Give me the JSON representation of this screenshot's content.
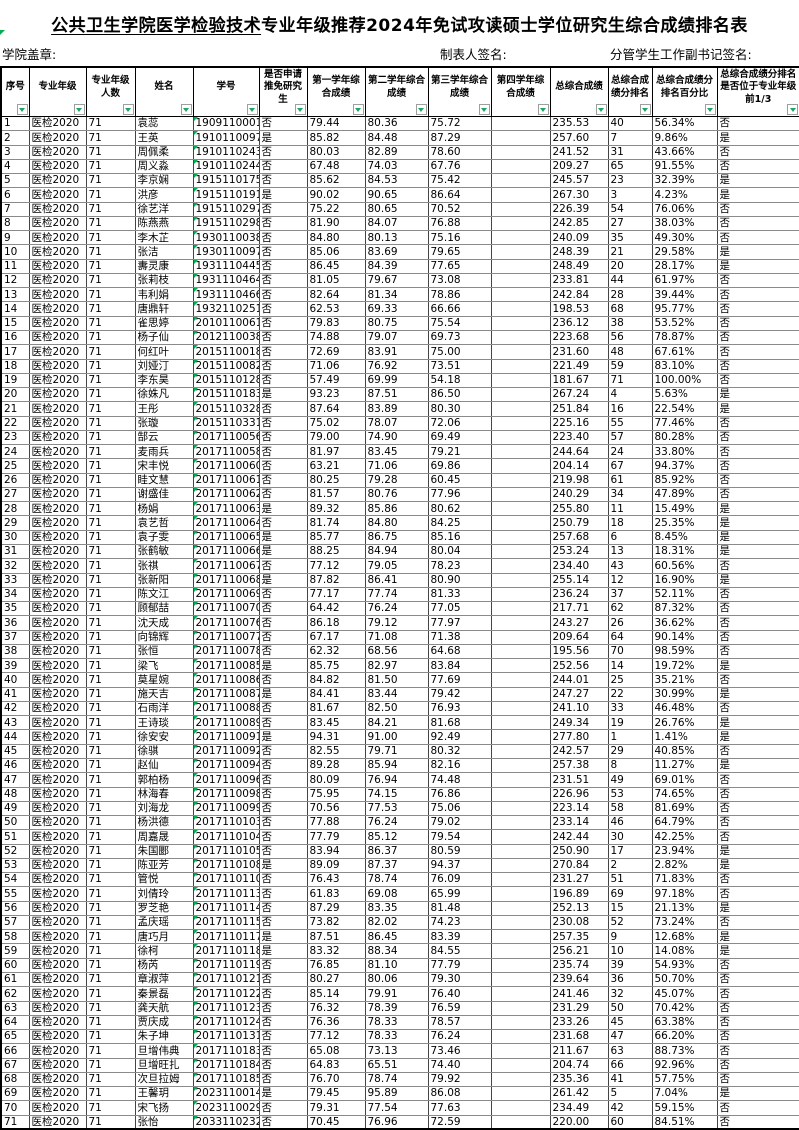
{
  "title": {
    "underlined_part1": "公共卫生学院",
    "underlined_part2": "医学检验技术",
    "rest": "专业年级推荐2024年免试攻读硕士学位研究生综合成绩排名表"
  },
  "signatures": {
    "left": "学院盖章:",
    "center": "制表人签名:",
    "right": "分管学生工作副书记签名:"
  },
  "colors": {
    "filter_arrow_green": "#21a366",
    "error_indicator_green": "#00b050",
    "grid_line": "#8a8a8a",
    "border": "#000000"
  },
  "columns": [
    {
      "key": "index",
      "label": "序号"
    },
    {
      "key": "major",
      "label": "专业年级"
    },
    {
      "key": "cohort_size",
      "label": "专业年级人数"
    },
    {
      "key": "name",
      "label": "姓名"
    },
    {
      "key": "student_id",
      "label": "学号"
    },
    {
      "key": "applied",
      "label": "是否申请推免研究生"
    },
    {
      "key": "year1",
      "label": "第一学年综合成绩"
    },
    {
      "key": "year2",
      "label": "第二学年综合成绩"
    },
    {
      "key": "year3",
      "label": "第三学年综合成绩"
    },
    {
      "key": "year4",
      "label": "第四学年综合成绩"
    },
    {
      "key": "total",
      "label": "总综合成绩"
    },
    {
      "key": "rank",
      "label": "总综合成绩分排名"
    },
    {
      "key": "rank_percent",
      "label": "总综合成绩分排名百分比"
    },
    {
      "key": "in_top_third",
      "label": "总综合成绩分排名是否位于专业年级前1/3"
    }
  ],
  "rows": [
    [
      "1",
      "医检2020",
      "71",
      "袁蕊",
      "1909110001",
      "否",
      "79.44",
      "80.36",
      "75.72",
      "",
      "235.53",
      "40",
      "56.34%",
      "否"
    ],
    [
      "2",
      "医检2020",
      "71",
      "王英",
      "1910110097",
      "是",
      "85.82",
      "84.48",
      "87.29",
      "",
      "257.60",
      "7",
      "9.86%",
      "是"
    ],
    [
      "3",
      "医检2020",
      "71",
      "周佩柔",
      "1910110243",
      "否",
      "80.03",
      "82.89",
      "78.60",
      "",
      "241.52",
      "31",
      "43.66%",
      "否"
    ],
    [
      "4",
      "医检2020",
      "71",
      "周义淼",
      "1910110244",
      "否",
      "67.48",
      "74.03",
      "67.76",
      "",
      "209.27",
      "65",
      "91.55%",
      "否"
    ],
    [
      "5",
      "医检2020",
      "71",
      "李京娴",
      "1915110175",
      "否",
      "85.62",
      "84.53",
      "75.42",
      "",
      "245.57",
      "23",
      "32.39%",
      "是"
    ],
    [
      "6",
      "医检2020",
      "71",
      "洪彦",
      "1915110191",
      "是",
      "90.02",
      "90.65",
      "86.64",
      "",
      "267.30",
      "3",
      "4.23%",
      "是"
    ],
    [
      "7",
      "医检2020",
      "71",
      "徐艺洋",
      "1915110297",
      "否",
      "75.22",
      "80.65",
      "70.52",
      "",
      "226.39",
      "54",
      "76.06%",
      "否"
    ],
    [
      "8",
      "医检2020",
      "71",
      "陈燕燕",
      "1915110298",
      "否",
      "81.90",
      "84.07",
      "76.88",
      "",
      "242.85",
      "27",
      "38.03%",
      "否"
    ],
    [
      "9",
      "医检2020",
      "71",
      "李木芷",
      "1930110038",
      "否",
      "84.80",
      "80.13",
      "75.16",
      "",
      "240.09",
      "35",
      "49.30%",
      "否"
    ],
    [
      "10",
      "医检2020",
      "71",
      "张洁",
      "1930110097",
      "否",
      "85.06",
      "83.69",
      "79.65",
      "",
      "248.39",
      "21",
      "29.58%",
      "是"
    ],
    [
      "11",
      "医检2020",
      "71",
      "夀灵康",
      "1931110445",
      "否",
      "86.45",
      "84.39",
      "77.65",
      "",
      "248.49",
      "20",
      "28.17%",
      "是"
    ],
    [
      "12",
      "医检2020",
      "71",
      "张莉枝",
      "1931110464",
      "否",
      "81.05",
      "79.67",
      "73.08",
      "",
      "233.81",
      "44",
      "61.97%",
      "否"
    ],
    [
      "13",
      "医检2020",
      "71",
      "韦利娟",
      "1931110466",
      "否",
      "82.64",
      "81.34",
      "78.86",
      "",
      "242.84",
      "28",
      "39.44%",
      "否"
    ],
    [
      "14",
      "医检2020",
      "71",
      "唐鼎轩",
      "1932110251",
      "否",
      "62.53",
      "69.33",
      "66.66",
      "",
      "198.53",
      "68",
      "95.77%",
      "否"
    ],
    [
      "15",
      "医检2020",
      "71",
      "雀思婷",
      "2010110061",
      "否",
      "79.83",
      "80.75",
      "75.54",
      "",
      "236.12",
      "38",
      "53.52%",
      "否"
    ],
    [
      "16",
      "医检2020",
      "71",
      "杨子仙",
      "2012110038",
      "否",
      "74.88",
      "79.07",
      "69.73",
      "",
      "223.68",
      "56",
      "78.87%",
      "否"
    ],
    [
      "17",
      "医检2020",
      "71",
      "何红叶",
      "2015110018",
      "否",
      "72.69",
      "83.91",
      "75.00",
      "",
      "231.60",
      "48",
      "67.61%",
      "否"
    ],
    [
      "18",
      "医检2020",
      "71",
      "刘娅汀",
      "2015110082",
      "否",
      "71.06",
      "76.92",
      "73.51",
      "",
      "221.49",
      "59",
      "83.10%",
      "否"
    ],
    [
      "19",
      "医检2020",
      "71",
      "李东昊",
      "2015110128",
      "否",
      "57.49",
      "69.99",
      "54.18",
      "",
      "181.67",
      "71",
      "100.00%",
      "否"
    ],
    [
      "20",
      "医检2020",
      "71",
      "徐姝凡",
      "2015110183",
      "是",
      "93.23",
      "87.51",
      "86.50",
      "",
      "267.24",
      "4",
      "5.63%",
      "是"
    ],
    [
      "21",
      "医检2020",
      "71",
      "王彤",
      "2015110328",
      "否",
      "87.64",
      "83.89",
      "80.30",
      "",
      "251.84",
      "16",
      "22.54%",
      "是"
    ],
    [
      "22",
      "医检2020",
      "71",
      "张璇",
      "2015110331",
      "否",
      "75.02",
      "78.07",
      "72.06",
      "",
      "225.16",
      "55",
      "77.46%",
      "否"
    ],
    [
      "23",
      "医检2020",
      "71",
      "郜云",
      "2017110056",
      "否",
      "79.00",
      "74.90",
      "69.49",
      "",
      "223.40",
      "57",
      "80.28%",
      "否"
    ],
    [
      "24",
      "医检2020",
      "71",
      "麦雨兵",
      "2017110058",
      "否",
      "81.97",
      "83.45",
      "79.21",
      "",
      "244.64",
      "24",
      "33.80%",
      "否"
    ],
    [
      "25",
      "医检2020",
      "71",
      "宋丰悦",
      "2017110060",
      "否",
      "63.21",
      "71.06",
      "69.86",
      "",
      "204.14",
      "67",
      "94.37%",
      "否"
    ],
    [
      "26",
      "医检2020",
      "71",
      "眭文慧",
      "2017110061",
      "否",
      "80.25",
      "79.28",
      "60.45",
      "",
      "219.98",
      "61",
      "85.92%",
      "否"
    ],
    [
      "27",
      "医检2020",
      "71",
      "谢盛佳",
      "2017110062",
      "否",
      "81.57",
      "80.76",
      "77.96",
      "",
      "240.29",
      "34",
      "47.89%",
      "否"
    ],
    [
      "28",
      "医检2020",
      "71",
      "杨娟",
      "2017110063",
      "是",
      "89.32",
      "85.86",
      "80.62",
      "",
      "255.80",
      "11",
      "15.49%",
      "是"
    ],
    [
      "29",
      "医检2020",
      "71",
      "袁艺哲",
      "2017110064",
      "否",
      "81.74",
      "84.80",
      "84.25",
      "",
      "250.79",
      "18",
      "25.35%",
      "是"
    ],
    [
      "30",
      "医检2020",
      "71",
      "袁子雯",
      "2017110065",
      "是",
      "85.77",
      "86.75",
      "85.16",
      "",
      "257.68",
      "6",
      "8.45%",
      "是"
    ],
    [
      "31",
      "医检2020",
      "71",
      "张鹤敏",
      "2017110066",
      "是",
      "88.25",
      "84.94",
      "80.04",
      "",
      "253.24",
      "13",
      "18.31%",
      "是"
    ],
    [
      "32",
      "医检2020",
      "71",
      "张祺",
      "2017110067",
      "否",
      "77.12",
      "79.05",
      "78.23",
      "",
      "234.40",
      "43",
      "60.56%",
      "否"
    ],
    [
      "33",
      "医检2020",
      "71",
      "张新阳",
      "2017110068",
      "是",
      "87.82",
      "86.41",
      "80.90",
      "",
      "255.14",
      "12",
      "16.90%",
      "是"
    ],
    [
      "34",
      "医检2020",
      "71",
      "陈文江",
      "2017110069",
      "否",
      "77.17",
      "77.74",
      "81.33",
      "",
      "236.24",
      "37",
      "52.11%",
      "否"
    ],
    [
      "35",
      "医检2020",
      "71",
      "顾郁喆",
      "2017110070",
      "否",
      "64.42",
      "76.24",
      "77.05",
      "",
      "217.71",
      "62",
      "87.32%",
      "否"
    ],
    [
      "36",
      "医检2020",
      "71",
      "沈天成",
      "2017110076",
      "否",
      "86.18",
      "79.12",
      "77.97",
      "",
      "243.27",
      "26",
      "36.62%",
      "否"
    ],
    [
      "37",
      "医检2020",
      "71",
      "向锦辉",
      "2017110077",
      "否",
      "67.17",
      "71.08",
      "71.38",
      "",
      "209.64",
      "64",
      "90.14%",
      "否"
    ],
    [
      "38",
      "医检2020",
      "71",
      "张恒",
      "2017110078",
      "否",
      "62.32",
      "68.56",
      "64.68",
      "",
      "195.56",
      "70",
      "98.59%",
      "否"
    ],
    [
      "39",
      "医检2020",
      "71",
      "梁飞",
      "2017110085",
      "是",
      "85.75",
      "82.97",
      "83.84",
      "",
      "252.56",
      "14",
      "19.72%",
      "是"
    ],
    [
      "40",
      "医检2020",
      "71",
      "莫星婉",
      "2017110086",
      "否",
      "84.82",
      "81.50",
      "77.69",
      "",
      "244.01",
      "25",
      "35.21%",
      "否"
    ],
    [
      "41",
      "医检2020",
      "71",
      "施天吉",
      "2017110087",
      "是",
      "84.41",
      "83.44",
      "79.42",
      "",
      "247.27",
      "22",
      "30.99%",
      "是"
    ],
    [
      "42",
      "医检2020",
      "71",
      "石雨洋",
      "2017110088",
      "否",
      "81.67",
      "82.50",
      "76.93",
      "",
      "241.10",
      "33",
      "46.48%",
      "否"
    ],
    [
      "43",
      "医检2020",
      "71",
      "王诗琰",
      "2017110089",
      "否",
      "83.45",
      "84.21",
      "81.68",
      "",
      "249.34",
      "19",
      "26.76%",
      "是"
    ],
    [
      "44",
      "医检2020",
      "71",
      "徐安安",
      "2017110091",
      "是",
      "94.31",
      "91.00",
      "92.49",
      "",
      "277.80",
      "1",
      "1.41%",
      "是"
    ],
    [
      "45",
      "医检2020",
      "71",
      "徐骐",
      "2017110092",
      "否",
      "82.55",
      "79.71",
      "80.32",
      "",
      "242.57",
      "29",
      "40.85%",
      "否"
    ],
    [
      "46",
      "医检2020",
      "71",
      "赵仙",
      "2017110094",
      "否",
      "89.28",
      "85.94",
      "82.16",
      "",
      "257.38",
      "8",
      "11.27%",
      "是"
    ],
    [
      "47",
      "医检2020",
      "71",
      "郭柏杨",
      "2017110096",
      "否",
      "80.09",
      "76.94",
      "74.48",
      "",
      "231.51",
      "49",
      "69.01%",
      "否"
    ],
    [
      "48",
      "医检2020",
      "71",
      "林海春",
      "2017110098",
      "否",
      "75.95",
      "74.15",
      "76.86",
      "",
      "226.96",
      "53",
      "74.65%",
      "否"
    ],
    [
      "49",
      "医检2020",
      "71",
      "刘海龙",
      "2017110099",
      "否",
      "70.56",
      "77.53",
      "75.06",
      "",
      "223.14",
      "58",
      "81.69%",
      "否"
    ],
    [
      "50",
      "医检2020",
      "71",
      "杨洪德",
      "2017110103",
      "否",
      "77.88",
      "76.24",
      "79.02",
      "",
      "233.14",
      "46",
      "64.79%",
      "否"
    ],
    [
      "51",
      "医检2020",
      "71",
      "周嘉晟",
      "2017110104",
      "否",
      "77.79",
      "85.12",
      "79.54",
      "",
      "242.44",
      "30",
      "42.25%",
      "否"
    ],
    [
      "52",
      "医检2020",
      "71",
      "朱国郾",
      "2017110105",
      "否",
      "83.94",
      "86.37",
      "80.59",
      "",
      "250.90",
      "17",
      "23.94%",
      "是"
    ],
    [
      "53",
      "医检2020",
      "71",
      "陈亚芳",
      "2017110108",
      "是",
      "89.09",
      "87.37",
      "94.37",
      "",
      "270.84",
      "2",
      "2.82%",
      "是"
    ],
    [
      "54",
      "医检2020",
      "71",
      "管悦",
      "2017110110",
      "否",
      "76.43",
      "78.74",
      "76.09",
      "",
      "231.27",
      "51",
      "71.83%",
      "否"
    ],
    [
      "55",
      "医检2020",
      "71",
      "刘倩玲",
      "2017110113",
      "否",
      "61.83",
      "69.08",
      "65.99",
      "",
      "196.89",
      "69",
      "97.18%",
      "否"
    ],
    [
      "56",
      "医检2020",
      "71",
      "罗芝艳",
      "2017110114",
      "否",
      "87.29",
      "83.35",
      "81.48",
      "",
      "252.13",
      "15",
      "21.13%",
      "是"
    ],
    [
      "57",
      "医检2020",
      "71",
      "孟庆瑶",
      "2017110115",
      "否",
      "73.82",
      "82.02",
      "74.23",
      "",
      "230.08",
      "52",
      "73.24%",
      "否"
    ],
    [
      "58",
      "医检2020",
      "71",
      "唐巧月",
      "2017110117",
      "是",
      "87.51",
      "86.45",
      "83.39",
      "",
      "257.35",
      "9",
      "12.68%",
      "是"
    ],
    [
      "59",
      "医检2020",
      "71",
      "徐柯",
      "2017110118",
      "是",
      "83.32",
      "88.34",
      "84.55",
      "",
      "256.21",
      "10",
      "14.08%",
      "是"
    ],
    [
      "60",
      "医检2020",
      "71",
      "杨芮",
      "2017110119",
      "否",
      "76.85",
      "81.10",
      "77.79",
      "",
      "235.74",
      "39",
      "54.93%",
      "否"
    ],
    [
      "61",
      "医检2020",
      "71",
      "章淑萍",
      "2017110121",
      "否",
      "80.27",
      "80.06",
      "79.30",
      "",
      "239.64",
      "36",
      "50.70%",
      "否"
    ],
    [
      "62",
      "医检2020",
      "71",
      "秦景磊",
      "2017110122",
      "否",
      "85.14",
      "79.91",
      "76.40",
      "",
      "241.46",
      "32",
      "45.07%",
      "否"
    ],
    [
      "63",
      "医检2020",
      "71",
      "龚天航",
      "2017110123",
      "否",
      "76.32",
      "78.39",
      "76.59",
      "",
      "231.29",
      "50",
      "70.42%",
      "否"
    ],
    [
      "64",
      "医检2020",
      "71",
      "贾庆成",
      "2017110124",
      "否",
      "76.36",
      "78.33",
      "78.57",
      "",
      "233.26",
      "45",
      "63.38%",
      "否"
    ],
    [
      "65",
      "医检2020",
      "71",
      "朱子坤",
      "2017110131",
      "否",
      "77.12",
      "78.33",
      "76.24",
      "",
      "231.68",
      "47",
      "66.20%",
      "否"
    ],
    [
      "66",
      "医检2020",
      "71",
      "旦增伟典",
      "2017110183M",
      "否",
      "65.08",
      "73.13",
      "73.46",
      "",
      "211.67",
      "63",
      "88.73%",
      "否"
    ],
    [
      "67",
      "医检2020",
      "71",
      "旦增旺扎",
      "2017110184M",
      "否",
      "64.83",
      "65.51",
      "74.40",
      "",
      "204.74",
      "66",
      "92.96%",
      "否"
    ],
    [
      "68",
      "医检2020",
      "71",
      "次旦拉姆",
      "2017110185M",
      "否",
      "76.70",
      "78.74",
      "79.92",
      "",
      "235.36",
      "41",
      "57.75%",
      "否"
    ],
    [
      "69",
      "医检2020",
      "71",
      "王馨玥",
      "2023110014",
      "是",
      "79.45",
      "95.89",
      "86.08",
      "",
      "261.42",
      "5",
      "7.04%",
      "是"
    ],
    [
      "70",
      "医检2020",
      "71",
      "宋飞扬",
      "2023110029",
      "否",
      "79.31",
      "77.54",
      "77.63",
      "",
      "234.49",
      "42",
      "59.15%",
      "否"
    ],
    [
      "71",
      "医检2020",
      "71",
      "张怡",
      "2033110232",
      "否",
      "70.45",
      "76.96",
      "72.59",
      "",
      "220.00",
      "60",
      "84.51%",
      "否"
    ]
  ]
}
